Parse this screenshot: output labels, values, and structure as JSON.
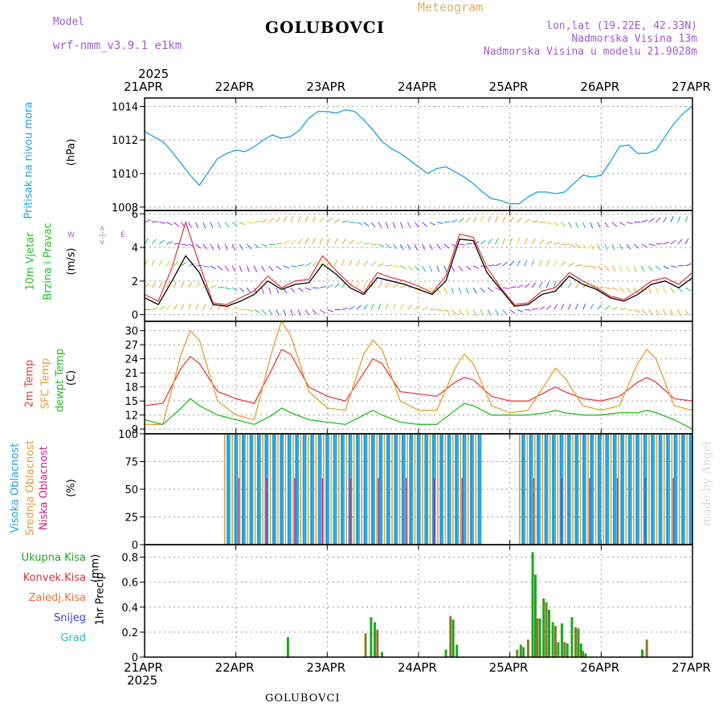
{
  "header": {
    "model_label": "Model",
    "model_name": "wrf-nmm_v3.9.1 e1km",
    "station": "GOLUBOVCI",
    "meteogram": "Meteogram",
    "lonlat": "lon,lat (19.22E, 42.33N)",
    "altitude": "Nadmorska Visina 13m",
    "model_altitude": "Nadmorska Visina u modelu 21.9028m",
    "year_top": "2025",
    "year_bottom": "2025",
    "footer_station": "GOLUBOVCI",
    "watermark": "made by Angel"
  },
  "colors": {
    "pressure": "#1aa0e0",
    "temp2m": "#e04040",
    "sfc": "#e0a030",
    "dew": "#20c020",
    "high_cloud": "#1aa0e0",
    "mid_cloud": "#e0a030",
    "low_cloud": "#d0207a",
    "precip_total": "#22a522",
    "precip_conv": "#e03030",
    "precip_frz": "#f07030",
    "snow": "#4040e0",
    "hail": "#20c0c0"
  },
  "axis": {
    "dates": [
      "21APR",
      "22APR",
      "23APR",
      "24APR",
      "25APR",
      "26APR",
      "27APR"
    ]
  },
  "panels": {
    "pressure": {
      "label": "Pritisak na nivou mora",
      "unit": "(hPa)"
    },
    "wind": {
      "label1": "10m Vjetar",
      "label2": "Brzina i Pravac",
      "unit": "(m/s)",
      "compass_w": "W",
      "compass_e": "E",
      "compass_arrows": "<-|->"
    },
    "temp": {
      "label_2m": "2m Temp",
      "label_sfc": "SFC Temp",
      "label_dew": "dewpt Temp",
      "unit": "(C)"
    },
    "cloud": {
      "label_high": "Visoka Oblacnost",
      "label_mid": "Srednja Oblacnost",
      "label_low": "Niska Oblacnost",
      "unit": "(%)"
    },
    "precip": {
      "label": "1hr Precip",
      "unit": "(mm)",
      "legend": [
        "Ukupna Kisa",
        "Konvek.Kisa",
        "Zaledj.Kisa",
        "Snijeg",
        "Grad"
      ]
    }
  },
  "chart_data": [
    {
      "type": "line",
      "name": "pressure",
      "ylim": [
        1007.8,
        1014.5
      ],
      "yticks": [
        1008,
        1010,
        1012,
        1014
      ],
      "series": [
        {
          "name": "",
          "x": [
            0,
            0.1,
            0.2,
            0.3,
            0.4,
            0.5,
            0.6,
            0.7,
            0.8,
            0.9,
            1.0,
            1.1,
            1.2,
            1.3,
            1.4,
            1.5,
            1.6,
            1.7,
            1.8,
            1.9,
            2.0,
            2.1,
            2.2,
            2.3,
            2.4,
            2.5,
            2.6,
            2.7,
            2.8,
            2.9,
            3.0,
            3.1,
            3.2,
            3.3,
            3.4,
            3.5,
            3.6,
            3.7,
            3.8,
            3.9,
            4.0,
            4.1,
            4.2,
            4.3,
            4.4,
            4.5,
            4.6,
            4.7,
            4.8,
            4.9,
            5.0,
            5.1,
            5.2,
            5.3,
            5.4,
            5.5,
            5.6,
            5.7,
            5.8,
            5.9,
            6.0
          ],
          "values": [
            1012.5,
            1012.2,
            1011.9,
            1011.3,
            1010.6,
            1009.9,
            1009.3,
            1010.1,
            1010.9,
            1011.2,
            1011.4,
            1011.3,
            1011.6,
            1012.0,
            1012.3,
            1012.1,
            1012.2,
            1012.6,
            1013.3,
            1013.7,
            1013.7,
            1013.6,
            1013.8,
            1013.7,
            1013.2,
            1012.6,
            1011.9,
            1011.5,
            1011.2,
            1010.8,
            1010.4,
            1010.0,
            1010.3,
            1010.4,
            1010.1,
            1009.8,
            1009.4,
            1008.9,
            1008.5,
            1008.4,
            1008.2,
            1008.2,
            1008.6,
            1008.9,
            1008.9,
            1008.8,
            1008.9,
            1009.4,
            1009.9,
            1009.8,
            1009.9,
            1010.7,
            1011.6,
            1011.7,
            1011.2,
            1011.2,
            1011.4,
            1012.2,
            1013.0,
            1013.6,
            1014.0
          ]
        }
      ]
    },
    {
      "type": "line",
      "name": "wind",
      "ylim": [
        -0.4,
        6.2
      ],
      "yticks": [
        0,
        2,
        4,
        6
      ],
      "series": [
        {
          "name": "",
          "x": [
            0,
            0.15,
            0.3,
            0.45,
            0.6,
            0.75,
            0.9,
            1.05,
            1.2,
            1.35,
            1.5,
            1.65,
            1.8,
            1.95,
            2.1,
            2.25,
            2.4,
            2.55,
            2.7,
            2.85,
            3.0,
            3.15,
            3.3,
            3.45,
            3.6,
            3.75,
            3.9,
            4.05,
            4.2,
            4.35,
            4.5,
            4.65,
            4.8,
            4.95,
            5.1,
            5.25,
            5.4,
            5.55,
            5.7,
            5.85,
            6.0
          ],
          "values": [
            1.0,
            0.6,
            2.0,
            3.5,
            2.5,
            0.6,
            0.5,
            0.8,
            1.2,
            2.0,
            1.5,
            1.8,
            1.9,
            3.0,
            2.4,
            1.6,
            1.2,
            2.2,
            2.0,
            1.8,
            1.5,
            1.2,
            2.0,
            4.5,
            4.4,
            2.5,
            1.5,
            0.5,
            0.6,
            1.2,
            1.4,
            2.3,
            1.8,
            1.5,
            1.0,
            0.8,
            1.2,
            1.8,
            2.0,
            1.6,
            2.2
          ]
        },
        {
          "name": "",
          "x": [
            0,
            0.15,
            0.3,
            0.45,
            0.6,
            0.75,
            0.9,
            1.05,
            1.2,
            1.35,
            1.5,
            1.65,
            1.8,
            1.95,
            2.1,
            2.25,
            2.4,
            2.55,
            2.7,
            2.85,
            3.0,
            3.15,
            3.3,
            3.45,
            3.6,
            3.75,
            3.9,
            4.05,
            4.2,
            4.35,
            4.5,
            4.65,
            4.8,
            4.95,
            5.1,
            5.25,
            5.4,
            5.55,
            5.7,
            5.85,
            6.0
          ],
          "values": [
            1.2,
            0.8,
            2.8,
            5.5,
            3.0,
            0.7,
            0.6,
            1.0,
            1.4,
            2.3,
            1.6,
            2.0,
            2.1,
            3.5,
            2.6,
            1.8,
            1.3,
            2.5,
            2.2,
            2.0,
            1.7,
            1.3,
            2.3,
            4.8,
            4.6,
            2.8,
            1.6,
            0.6,
            0.7,
            1.4,
            1.6,
            2.5,
            2.0,
            1.6,
            1.1,
            0.9,
            1.4,
            2.0,
            2.2,
            1.8,
            2.5
          ]
        }
      ]
    },
    {
      "type": "line",
      "name": "temperature",
      "ylim": [
        8,
        32
      ],
      "yticks": [
        9,
        12,
        15,
        18,
        21,
        24,
        27,
        30
      ],
      "series": [
        {
          "name": "2m Temp",
          "x": [
            0,
            0.2,
            0.4,
            0.5,
            0.6,
            0.8,
            1.0,
            1.2,
            1.4,
            1.5,
            1.6,
            1.8,
            2.0,
            2.2,
            2.4,
            2.5,
            2.6,
            2.8,
            3.0,
            3.2,
            3.4,
            3.5,
            3.6,
            3.8,
            4.0,
            4.2,
            4.4,
            4.5,
            4.6,
            4.8,
            5.0,
            5.2,
            5.4,
            5.5,
            5.6,
            5.8,
            6.0
          ],
          "values": [
            14,
            14.5,
            22,
            24.5,
            23,
            17,
            15.5,
            14.5,
            22,
            26,
            25,
            18,
            16,
            15,
            21,
            24,
            23,
            17,
            16.5,
            16,
            19,
            20,
            19.5,
            16,
            15,
            15,
            17,
            18,
            17,
            15.5,
            15,
            16,
            19,
            20,
            19,
            15.5,
            15
          ]
        },
        {
          "name": "SFC Temp",
          "x": [
            0,
            0.2,
            0.4,
            0.5,
            0.6,
            0.8,
            1.0,
            1.2,
            1.4,
            1.5,
            1.6,
            1.8,
            2.0,
            2.2,
            2.4,
            2.5,
            2.6,
            2.8,
            3.0,
            3.2,
            3.4,
            3.5,
            3.6,
            3.8,
            4.0,
            4.2,
            4.4,
            4.5,
            4.6,
            4.8,
            5.0,
            5.2,
            5.4,
            5.5,
            5.6,
            5.8,
            6.0
          ],
          "values": [
            10,
            10,
            25,
            30,
            28,
            15,
            12,
            11,
            26,
            32,
            29,
            17,
            13.5,
            13,
            25,
            28,
            26,
            15,
            13,
            13,
            22,
            25,
            23,
            14,
            12.5,
            13,
            19,
            22,
            20,
            14,
            13,
            14,
            23,
            26,
            24,
            14,
            13
          ]
        },
        {
          "name": "dewpt Temp",
          "x": [
            0,
            0.2,
            0.4,
            0.5,
            0.6,
            0.8,
            1.0,
            1.2,
            1.4,
            1.5,
            1.6,
            1.8,
            2.0,
            2.2,
            2.4,
            2.5,
            2.6,
            2.8,
            3.0,
            3.2,
            3.4,
            3.5,
            3.6,
            3.8,
            4.0,
            4.2,
            4.4,
            4.5,
            4.6,
            4.8,
            5.0,
            5.2,
            5.4,
            5.5,
            5.6,
            5.8,
            6.0
          ],
          "values": [
            11,
            10,
            13.5,
            15.5,
            14,
            12,
            11,
            10,
            12,
            13.5,
            12.5,
            11,
            10.5,
            10,
            12,
            13,
            12,
            10.5,
            10,
            10,
            13,
            14.5,
            14,
            12,
            12,
            12,
            12.5,
            13,
            12.5,
            12,
            12,
            12.5,
            12.5,
            13,
            12.5,
            11,
            9
          ]
        }
      ]
    },
    {
      "type": "bar",
      "name": "cloud",
      "ylim": [
        0,
        100
      ],
      "yticks": [
        0,
        25,
        50,
        75,
        100
      ],
      "cloud_periods": [
        {
          "start": 0.0,
          "end": 0.87,
          "value": 0
        },
        {
          "start": 0.87,
          "end": 3.7,
          "value": 100
        },
        {
          "start": 3.7,
          "end": 4.1,
          "value": 0
        },
        {
          "start": 4.1,
          "end": 6.0,
          "value": 100
        }
      ]
    },
    {
      "type": "bar",
      "name": "precip",
      "ylim": [
        0,
        0.9
      ],
      "yticks": [
        0,
        0.2,
        0.4,
        0.6,
        0.8
      ],
      "series": [
        {
          "name": "Ukupna Kisa",
          "x": [
            1.57,
            2.42,
            2.48,
            2.52,
            2.55,
            2.6,
            3.3,
            3.35,
            3.38,
            3.42,
            4.08,
            4.12,
            4.15,
            4.2,
            4.25,
            4.28,
            4.3,
            4.33,
            4.37,
            4.4,
            4.43,
            4.47,
            4.5,
            4.53,
            4.57,
            4.6,
            4.63,
            4.68,
            4.72,
            4.75,
            4.78,
            4.8,
            4.83,
            5.45,
            5.5
          ],
          "values": [
            0.16,
            0.19,
            0.32,
            0.28,
            0.22,
            0.04,
            0.06,
            0.33,
            0.3,
            0.1,
            0.06,
            0.1,
            0.08,
            0.14,
            0.84,
            0.66,
            0.31,
            0.31,
            0.47,
            0.44,
            0.38,
            0.28,
            0.25,
            0.12,
            0.27,
            0.12,
            0.11,
            0.32,
            0.24,
            0.23,
            0.11,
            0.05,
            0.03,
            0.06,
            0.14
          ]
        }
      ]
    }
  ]
}
